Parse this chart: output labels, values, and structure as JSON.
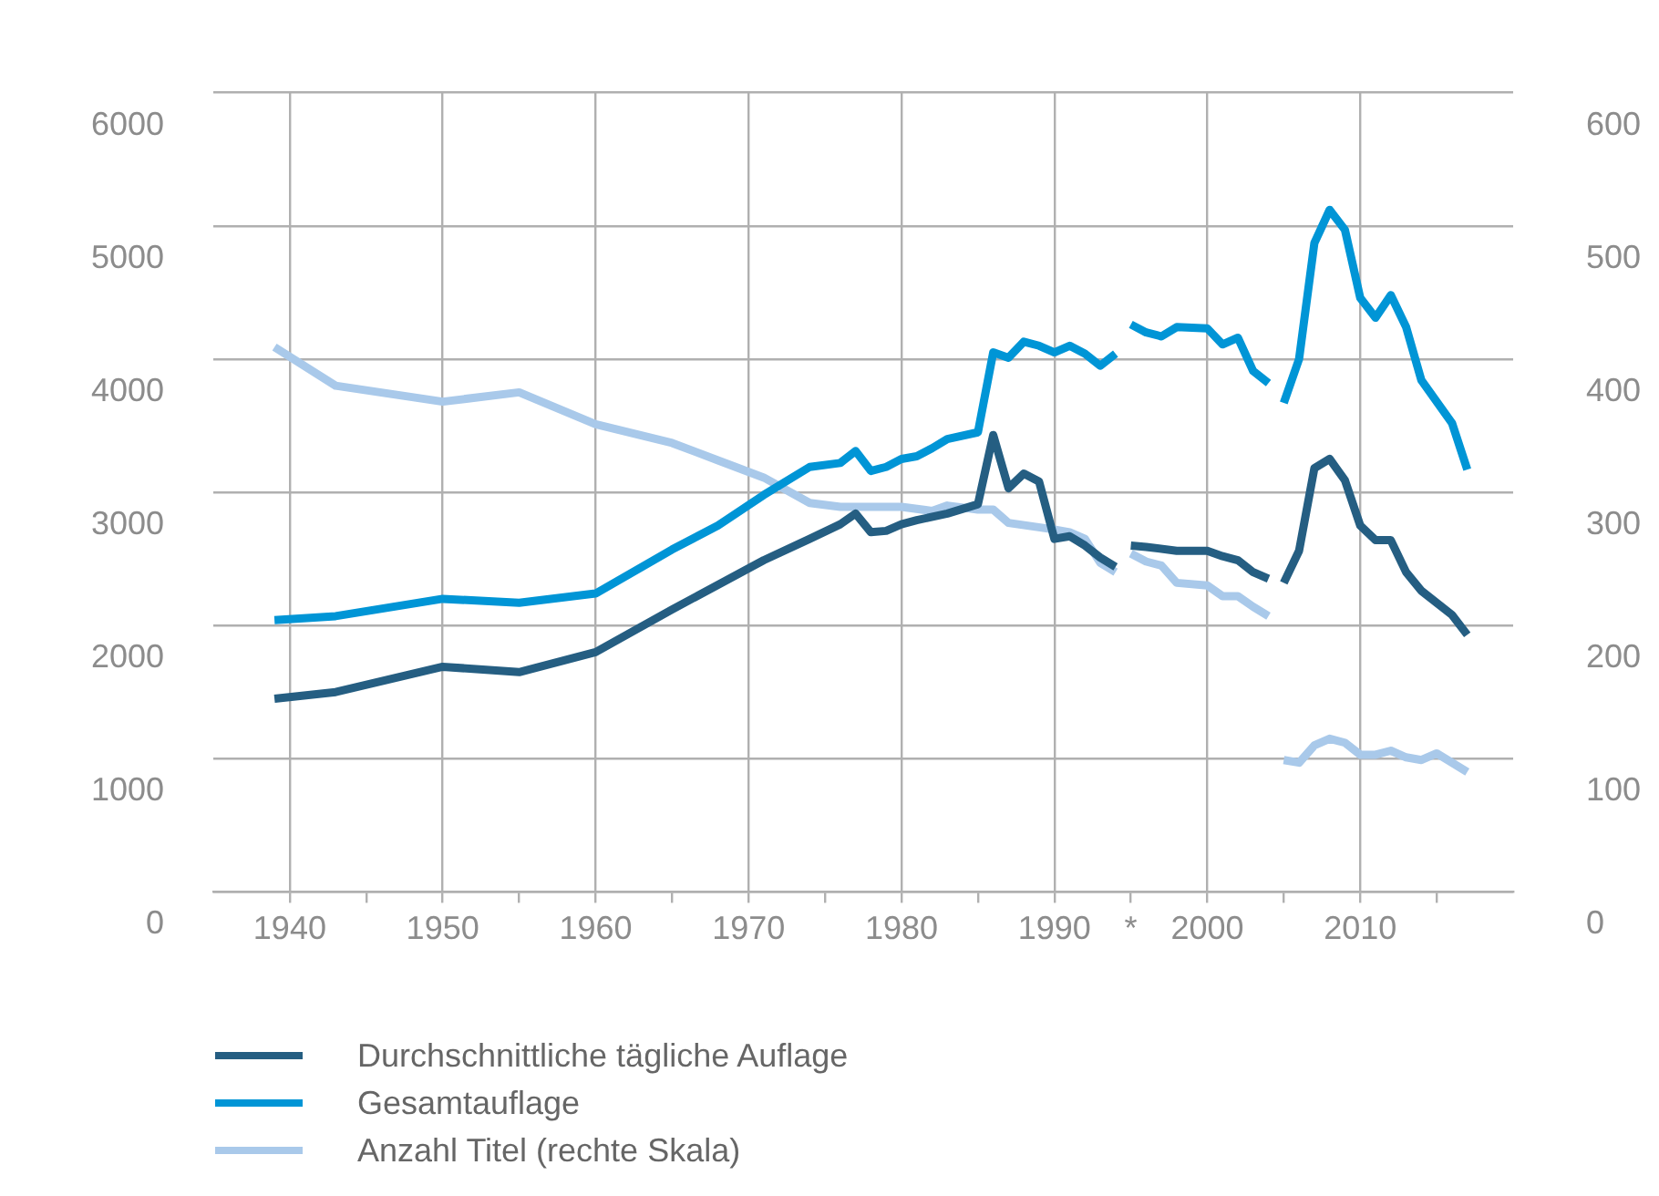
{
  "chart_data": {
    "type": "line",
    "xlim": [
      1935,
      2020
    ],
    "xticks": [
      1940,
      {
        "value": 1945,
        "label": null
      },
      1950,
      {
        "value": 1955,
        "label": null
      },
      1960,
      {
        "value": 1965,
        "label": null
      },
      1970,
      {
        "value": 1975,
        "label": null
      },
      1980,
      {
        "value": 1985,
        "label": null
      },
      1990,
      {
        "value": 1995,
        "label": "*"
      },
      2000,
      {
        "value": 2005,
        "label": null
      },
      2010,
      {
        "value": 2015,
        "label": null
      }
    ],
    "ylim": [
      0,
      6000
    ],
    "yticks": [
      0,
      1000,
      2000,
      3000,
      4000,
      5000,
      6000
    ],
    "y2lim": [
      0,
      600
    ],
    "y2ticks": [
      0,
      100,
      200,
      300,
      400,
      500,
      600
    ],
    "grid": true,
    "legend": "bottom left",
    "line_style": "solid",
    "marker": "none",
    "series": [
      {
        "name": "Durchschnittliche tägliche Auflage",
        "color": "#255e82",
        "x": [
          1939,
          1943,
          1950,
          1955,
          1960,
          1965,
          1971,
          1974,
          1976,
          1977,
          1978,
          1979,
          1980,
          1981,
          1983,
          1985,
          1986,
          1987,
          1988,
          1989,
          1990,
          1991,
          1992,
          1993,
          1994,
          1994.5,
          1995,
          1996,
          1998,
          2000,
          2001,
          2002,
          2003,
          2004,
          2004.5,
          2005,
          2006,
          2007,
          2008,
          2009,
          2010,
          2011,
          2012,
          2013,
          2014,
          2016,
          2017
        ],
        "values": [
          1450,
          1500,
          1690,
          1650,
          1800,
          2120,
          2490,
          2650,
          2760,
          2840,
          2700,
          2710,
          2760,
          2790,
          2840,
          2910,
          3430,
          3030,
          3140,
          3080,
          2650,
          2670,
          2600,
          2510,
          2440,
          null,
          2600,
          2590,
          2560,
          2560,
          2520,
          2490,
          2400,
          2350,
          null,
          2320,
          2560,
          3180,
          3250,
          3090,
          2750,
          2640,
          2640,
          2400,
          2260,
          2080,
          1930
        ]
      },
      {
        "name": "Gesamtauflage",
        "color": "#0095d6",
        "x": [
          1939,
          1943,
          1950,
          1955,
          1960,
          1965,
          1968,
          1971,
          1974,
          1976,
          1977,
          1978,
          1979,
          1980,
          1981,
          1982,
          1983,
          1985,
          1986,
          1987,
          1988,
          1989,
          1990,
          1991,
          1992,
          1993,
          1994,
          1994.5,
          1995,
          1996,
          1997,
          1998,
          2000,
          2001,
          2002,
          2003,
          2004,
          2004.5,
          2005,
          2006,
          2007,
          2008,
          2009,
          2010,
          2011,
          2012,
          2013,
          2014,
          2016,
          2017
        ],
        "values": [
          2040,
          2070,
          2200,
          2170,
          2240,
          2570,
          2750,
          2980,
          3190,
          3220,
          3310,
          3160,
          3190,
          3250,
          3270,
          3330,
          3400,
          3450,
          4050,
          4010,
          4130,
          4100,
          4050,
          4100,
          4040,
          3950,
          4040,
          null,
          4260,
          4200,
          4170,
          4240,
          4230,
          4110,
          4160,
          3910,
          3820,
          null,
          3670,
          4000,
          4870,
          5120,
          4970,
          4460,
          4310,
          4480,
          4240,
          3840,
          3520,
          3170
        ]
      },
      {
        "name": "Anzahl Titel (rechte Skala)",
        "color": "#a9c9ea",
        "axis": "y2",
        "x": [
          1939,
          1943,
          1950,
          1955,
          1960,
          1965,
          1968,
          1971,
          1974,
          1976,
          1980,
          1982,
          1983,
          1985,
          1986,
          1987,
          1990,
          1991,
          1992,
          1993,
          1994,
          1994.5,
          1995,
          1996,
          1997,
          1998,
          2000,
          2001,
          2002,
          2003,
          2004,
          2004.5,
          2005,
          2006,
          2007,
          2008,
          2009,
          2010,
          2011,
          2012,
          2013,
          2014,
          2015,
          2017
        ],
        "values": [
          409,
          380,
          368,
          375,
          351,
          337,
          324,
          311,
          292,
          289,
          289,
          286,
          290,
          287,
          287,
          277,
          272,
          270,
          265,
          247,
          240,
          null,
          254,
          248,
          245,
          232,
          230,
          222,
          222,
          214,
          207,
          null,
          99,
          97,
          110,
          115,
          112,
          103,
          103,
          106,
          101,
          99,
          104,
          90
        ]
      }
    ]
  }
}
